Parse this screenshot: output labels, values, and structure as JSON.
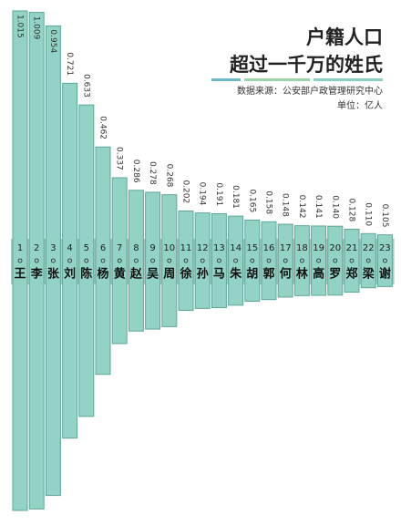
{
  "chart_data": {
    "type": "bar",
    "title": "户籍人口",
    "subtitle": "超过一千万的姓氏",
    "source": "数据来源：公安部户政管理研究中心",
    "unit": "单位：亿人",
    "ranks": [
      1,
      2,
      3,
      4,
      5,
      6,
      7,
      8,
      9,
      10,
      11,
      12,
      13,
      14,
      15,
      16,
      17,
      18,
      19,
      20,
      21,
      22,
      23
    ],
    "categories": [
      "王",
      "李",
      "张",
      "刘",
      "陈",
      "杨",
      "黄",
      "赵",
      "吴",
      "周",
      "徐",
      "孙",
      "马",
      "朱",
      "胡",
      "郭",
      "何",
      "林",
      "高",
      "罗",
      "郑",
      "梁",
      "谢"
    ],
    "values": [
      1.015,
      1.009,
      0.954,
      0.721,
      0.633,
      0.462,
      0.337,
      0.286,
      0.278,
      0.268,
      0.202,
      0.194,
      0.191,
      0.181,
      0.165,
      0.158,
      0.148,
      0.142,
      0.141,
      0.14,
      0.128,
      0.11,
      0.105
    ],
    "value_labels": [
      "1.015",
      "1.009",
      "0.954",
      "0.721",
      "0.633",
      "0.462",
      "0.337",
      "0.286",
      "0.278",
      "0.268",
      "0.202",
      "0.194",
      "0.191",
      "0.181",
      "0.165",
      "0.158",
      "0.148",
      "0.142",
      "0.141",
      "0.140",
      "0.128",
      "0.110",
      "0.105"
    ],
    "color": "#92d3c6"
  }
}
